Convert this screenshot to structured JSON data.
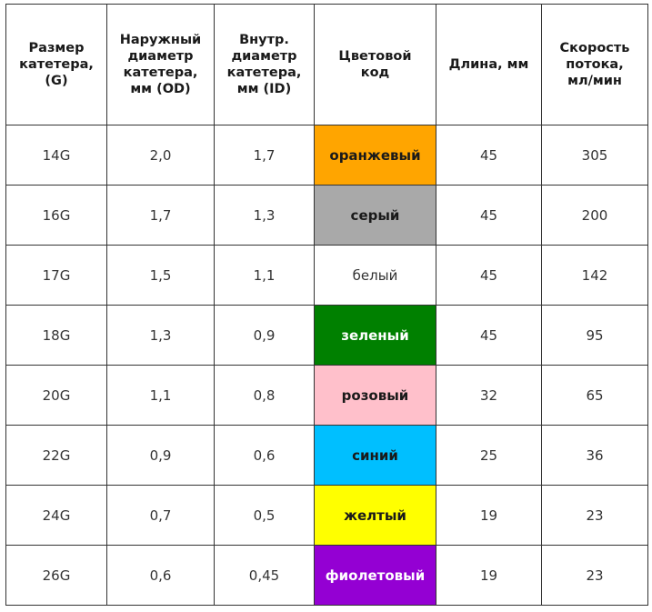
{
  "table": {
    "headers": [
      "Размер\nкатетера,\n(G)",
      "Наружный\nдиаметр\nкатетера,\nмм (OD)",
      "Внутр.\nдиаметр\nкатетера,\nмм (ID)",
      "Цветовой\nкод",
      "Длина, мм",
      "Скорость\nпотока,\nмл/мин"
    ],
    "rows": [
      {
        "gauge": "14G",
        "od": "2,0",
        "id": "1,7",
        "color_name": "оранжевый",
        "bg": "#ffa500",
        "fg": "#1a1a1a",
        "bold": true,
        "length": "45",
        "flow": "305"
      },
      {
        "gauge": "16G",
        "od": "1,7",
        "id": "1,3",
        "color_name": "серый",
        "bg": "#a9a9a9",
        "fg": "#1a1a1a",
        "bold": true,
        "length": "45",
        "flow": "200"
      },
      {
        "gauge": "17G",
        "od": "1,5",
        "id": "1,1",
        "color_name": "белый",
        "bg": "#ffffff",
        "fg": "#333333",
        "bold": false,
        "length": "45",
        "flow": "142"
      },
      {
        "gauge": "18G",
        "od": "1,3",
        "id": "0,9",
        "color_name": "зеленый",
        "bg": "#008000",
        "fg": "#ffffff",
        "bold": true,
        "length": "45",
        "flow": "95"
      },
      {
        "gauge": "20G",
        "od": "1,1",
        "id": "0,8",
        "color_name": "розовый",
        "bg": "#ffc0cb",
        "fg": "#1a1a1a",
        "bold": true,
        "length": "32",
        "flow": "65"
      },
      {
        "gauge": "22G",
        "od": "0,9",
        "id": "0,6",
        "color_name": "синий",
        "bg": "#00bfff",
        "fg": "#1a1a1a",
        "bold": true,
        "length": "25",
        "flow": "36"
      },
      {
        "gauge": "24G",
        "od": "0,7",
        "id": "0,5",
        "color_name": "желтый",
        "bg": "#ffff00",
        "fg": "#1a1a1a",
        "bold": true,
        "length": "19",
        "flow": "23"
      },
      {
        "gauge": "26G",
        "od": "0,6",
        "id": "0,45",
        "color_name": "фиолетовый",
        "bg": "#9400d3",
        "fg": "#ffffff",
        "bold": true,
        "length": "19",
        "flow": "23"
      }
    ]
  }
}
